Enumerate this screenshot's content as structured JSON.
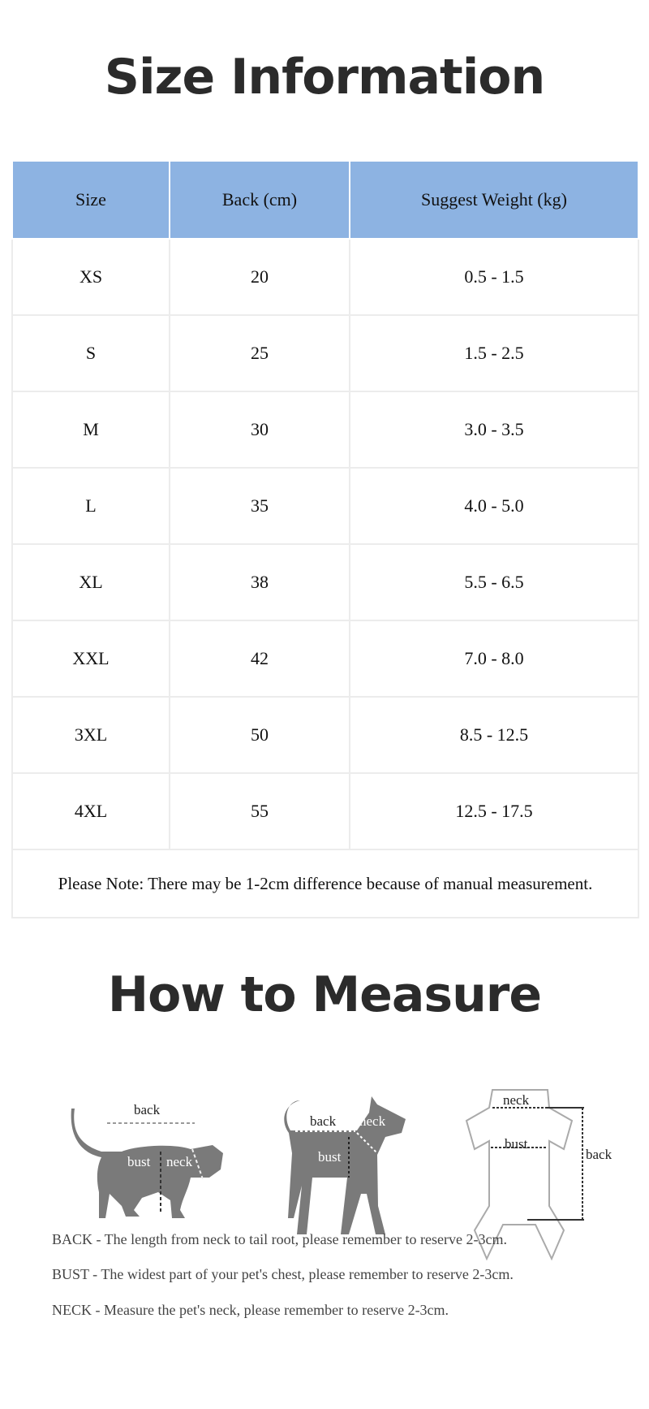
{
  "size_section": {
    "title": "Size Information"
  },
  "table": {
    "headers": [
      "Size",
      "Back (cm)",
      "Suggest Weight (kg)"
    ],
    "rows": [
      [
        "XS",
        "20",
        "0.5 - 1.5"
      ],
      [
        "S",
        "25",
        "1.5 - 2.5"
      ],
      [
        "M",
        "30",
        "3.0 - 3.5"
      ],
      [
        "L",
        "35",
        "4.0 - 5.0"
      ],
      [
        "XL",
        "38",
        "5.5 - 6.5"
      ],
      [
        "XXL",
        "42",
        "7.0 - 8.0"
      ],
      [
        "3XL",
        "50",
        "8.5 - 12.5"
      ],
      [
        "4XL",
        "55",
        "12.5 - 17.5"
      ]
    ],
    "note": "Please Note: There may be 1-2cm difference because of manual measurement.",
    "header_color": "#8db3e2"
  },
  "measure_section": {
    "title": "How to Measure",
    "cat_labels": {
      "back": "back",
      "bust": "bust",
      "neck": "neck"
    },
    "dog_labels": {
      "back": "back",
      "bust": "bust",
      "neck": "neck"
    },
    "garment_labels": {
      "back": "back",
      "bust": "bust",
      "neck": "neck"
    },
    "instructions": [
      "BACK - The length from neck to tail root, please remember to reserve 2-3cm.",
      "BUST - The widest part of your pet's chest, please remember to reserve 2-3cm.",
      "NECK - Measure the pet's neck, please remember to reserve 2-3cm."
    ]
  }
}
